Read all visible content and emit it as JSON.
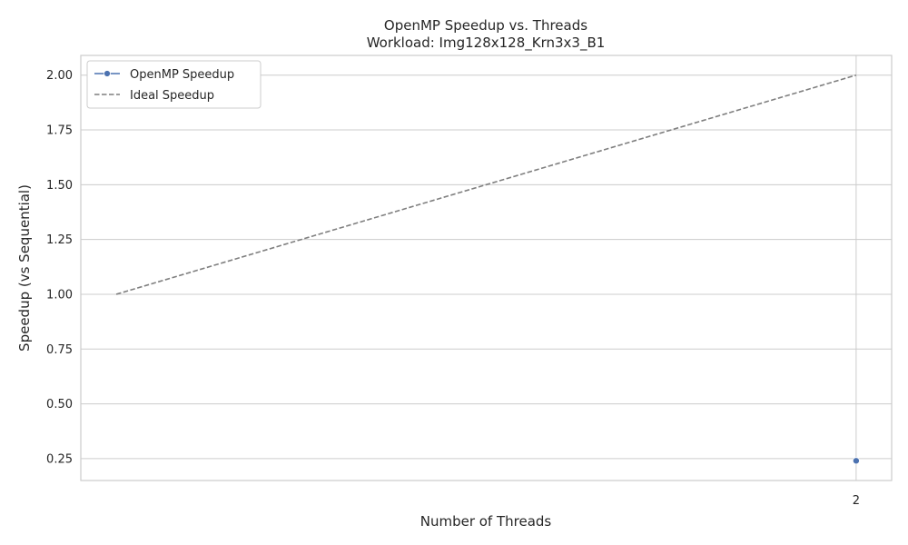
{
  "chart_data": {
    "type": "line",
    "title": "OpenMP Speedup vs. Threads",
    "subtitle": "Workload: Img128x128_Krn3x3_B1",
    "xlabel": "Number of Threads",
    "ylabel": "Speedup (vs Sequential)",
    "x_ticks": [
      "2"
    ],
    "y_ticks": [
      "0.25",
      "0.50",
      "0.75",
      "1.00",
      "1.25",
      "1.50",
      "1.75",
      "2.00"
    ],
    "xlim": [
      0.952,
      2.048
    ],
    "ylim": [
      0.15,
      2.09
    ],
    "grid": true,
    "legend_position": "top-left",
    "series": [
      {
        "name": "OpenMP Speedup",
        "style": "solid-marker",
        "color": "#4c72b0",
        "x": [
          2
        ],
        "y": [
          0.24
        ]
      },
      {
        "name": "Ideal Speedup",
        "style": "dashed",
        "color": "#7f7f7f",
        "x": [
          1,
          2
        ],
        "y": [
          1.0,
          2.0
        ]
      }
    ]
  }
}
